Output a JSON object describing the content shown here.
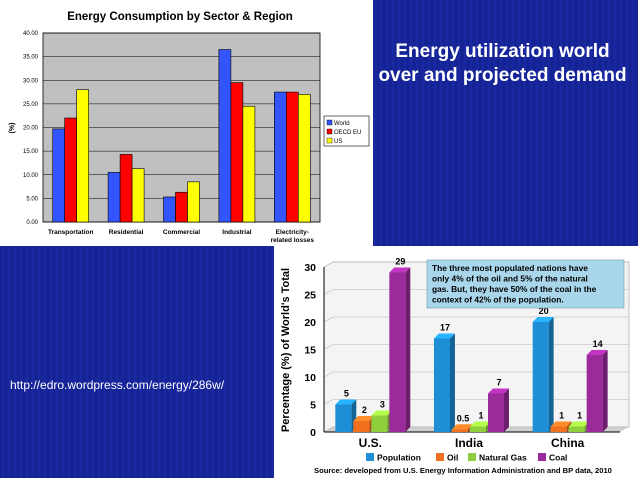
{
  "slide": {
    "title": "Energy utilization world over and projected demand",
    "source_url": "http://edro.wordpress.com/energy/286w/"
  },
  "colors": {
    "background": "#15239a",
    "world": "#3355ff",
    "oecd_eu": "#ff0000",
    "us": "#ffff00",
    "population": "#1e8fd6",
    "oil": "#f07020",
    "natural_gas": "#8fce3c",
    "coal": "#9b2a9b"
  },
  "chart_data": [
    {
      "type": "bar",
      "title": "Energy Consumption by Sector & Region",
      "ylabel": "(%)",
      "xlabel": "",
      "categories": [
        "Transportation",
        "Residential",
        "Commercial",
        "Industrial",
        "Electricity-related losses"
      ],
      "category_lines": [
        [
          "Transportation"
        ],
        [
          "Residential"
        ],
        [
          "Commercial"
        ],
        [
          "Industrial"
        ],
        [
          "Electricity-",
          "related losses"
        ]
      ],
      "series": [
        {
          "name": "World",
          "color": "#3355ff",
          "values": [
            19.7,
            10.5,
            5.3,
            36.5,
            27.5
          ]
        },
        {
          "name": "OECD EU",
          "color": "#ff0000",
          "values": [
            22.0,
            14.3,
            6.3,
            29.5,
            27.5
          ]
        },
        {
          "name": "US",
          "color": "#ffff00",
          "values": [
            28.0,
            11.3,
            8.5,
            24.5,
            27.0
          ]
        }
      ],
      "ylim": [
        0,
        40
      ],
      "yticks": [
        "0.00",
        "5.00",
        "10.00",
        "15.00",
        "20.00",
        "25.00",
        "30.00",
        "35.00",
        "40.00"
      ],
      "grid": true,
      "legend_position": "right"
    },
    {
      "type": "bar",
      "ylabel": "Percentage (%) of World's Total",
      "xlabel": "",
      "categories": [
        "U.S.",
        "India",
        "China"
      ],
      "series": [
        {
          "name": "Population",
          "color": "#1e8fd6",
          "values": [
            5,
            17,
            20
          ],
          "labels": [
            "5",
            "17",
            "20"
          ]
        },
        {
          "name": "Oil",
          "color": "#f07020",
          "values": [
            2,
            0.5,
            1
          ],
          "labels": [
            "2",
            "0.5",
            "1"
          ]
        },
        {
          "name": "Natural Gas",
          "color": "#8fce3c",
          "values": [
            3,
            1,
            1
          ],
          "labels": [
            "3",
            "1",
            "1"
          ]
        },
        {
          "name": "Coal",
          "color": "#9b2a9b",
          "values": [
            29,
            7,
            14
          ],
          "labels": [
            "29",
            "7",
            "14"
          ]
        }
      ],
      "ylim": [
        0,
        30
      ],
      "yticks": [
        "0",
        "5",
        "10",
        "15",
        "20",
        "25",
        "30"
      ],
      "grid": true,
      "legend_position": "bottom",
      "annotation_lines": [
        "The three most populated nations have",
        "only 4% of the oil and 5% of the natural",
        "gas. But, they have 50% of the coal in the",
        "context of 42% of the population."
      ],
      "source": "Source: developed from U.S. Energy Information Administration and BP data, 2010"
    }
  ]
}
